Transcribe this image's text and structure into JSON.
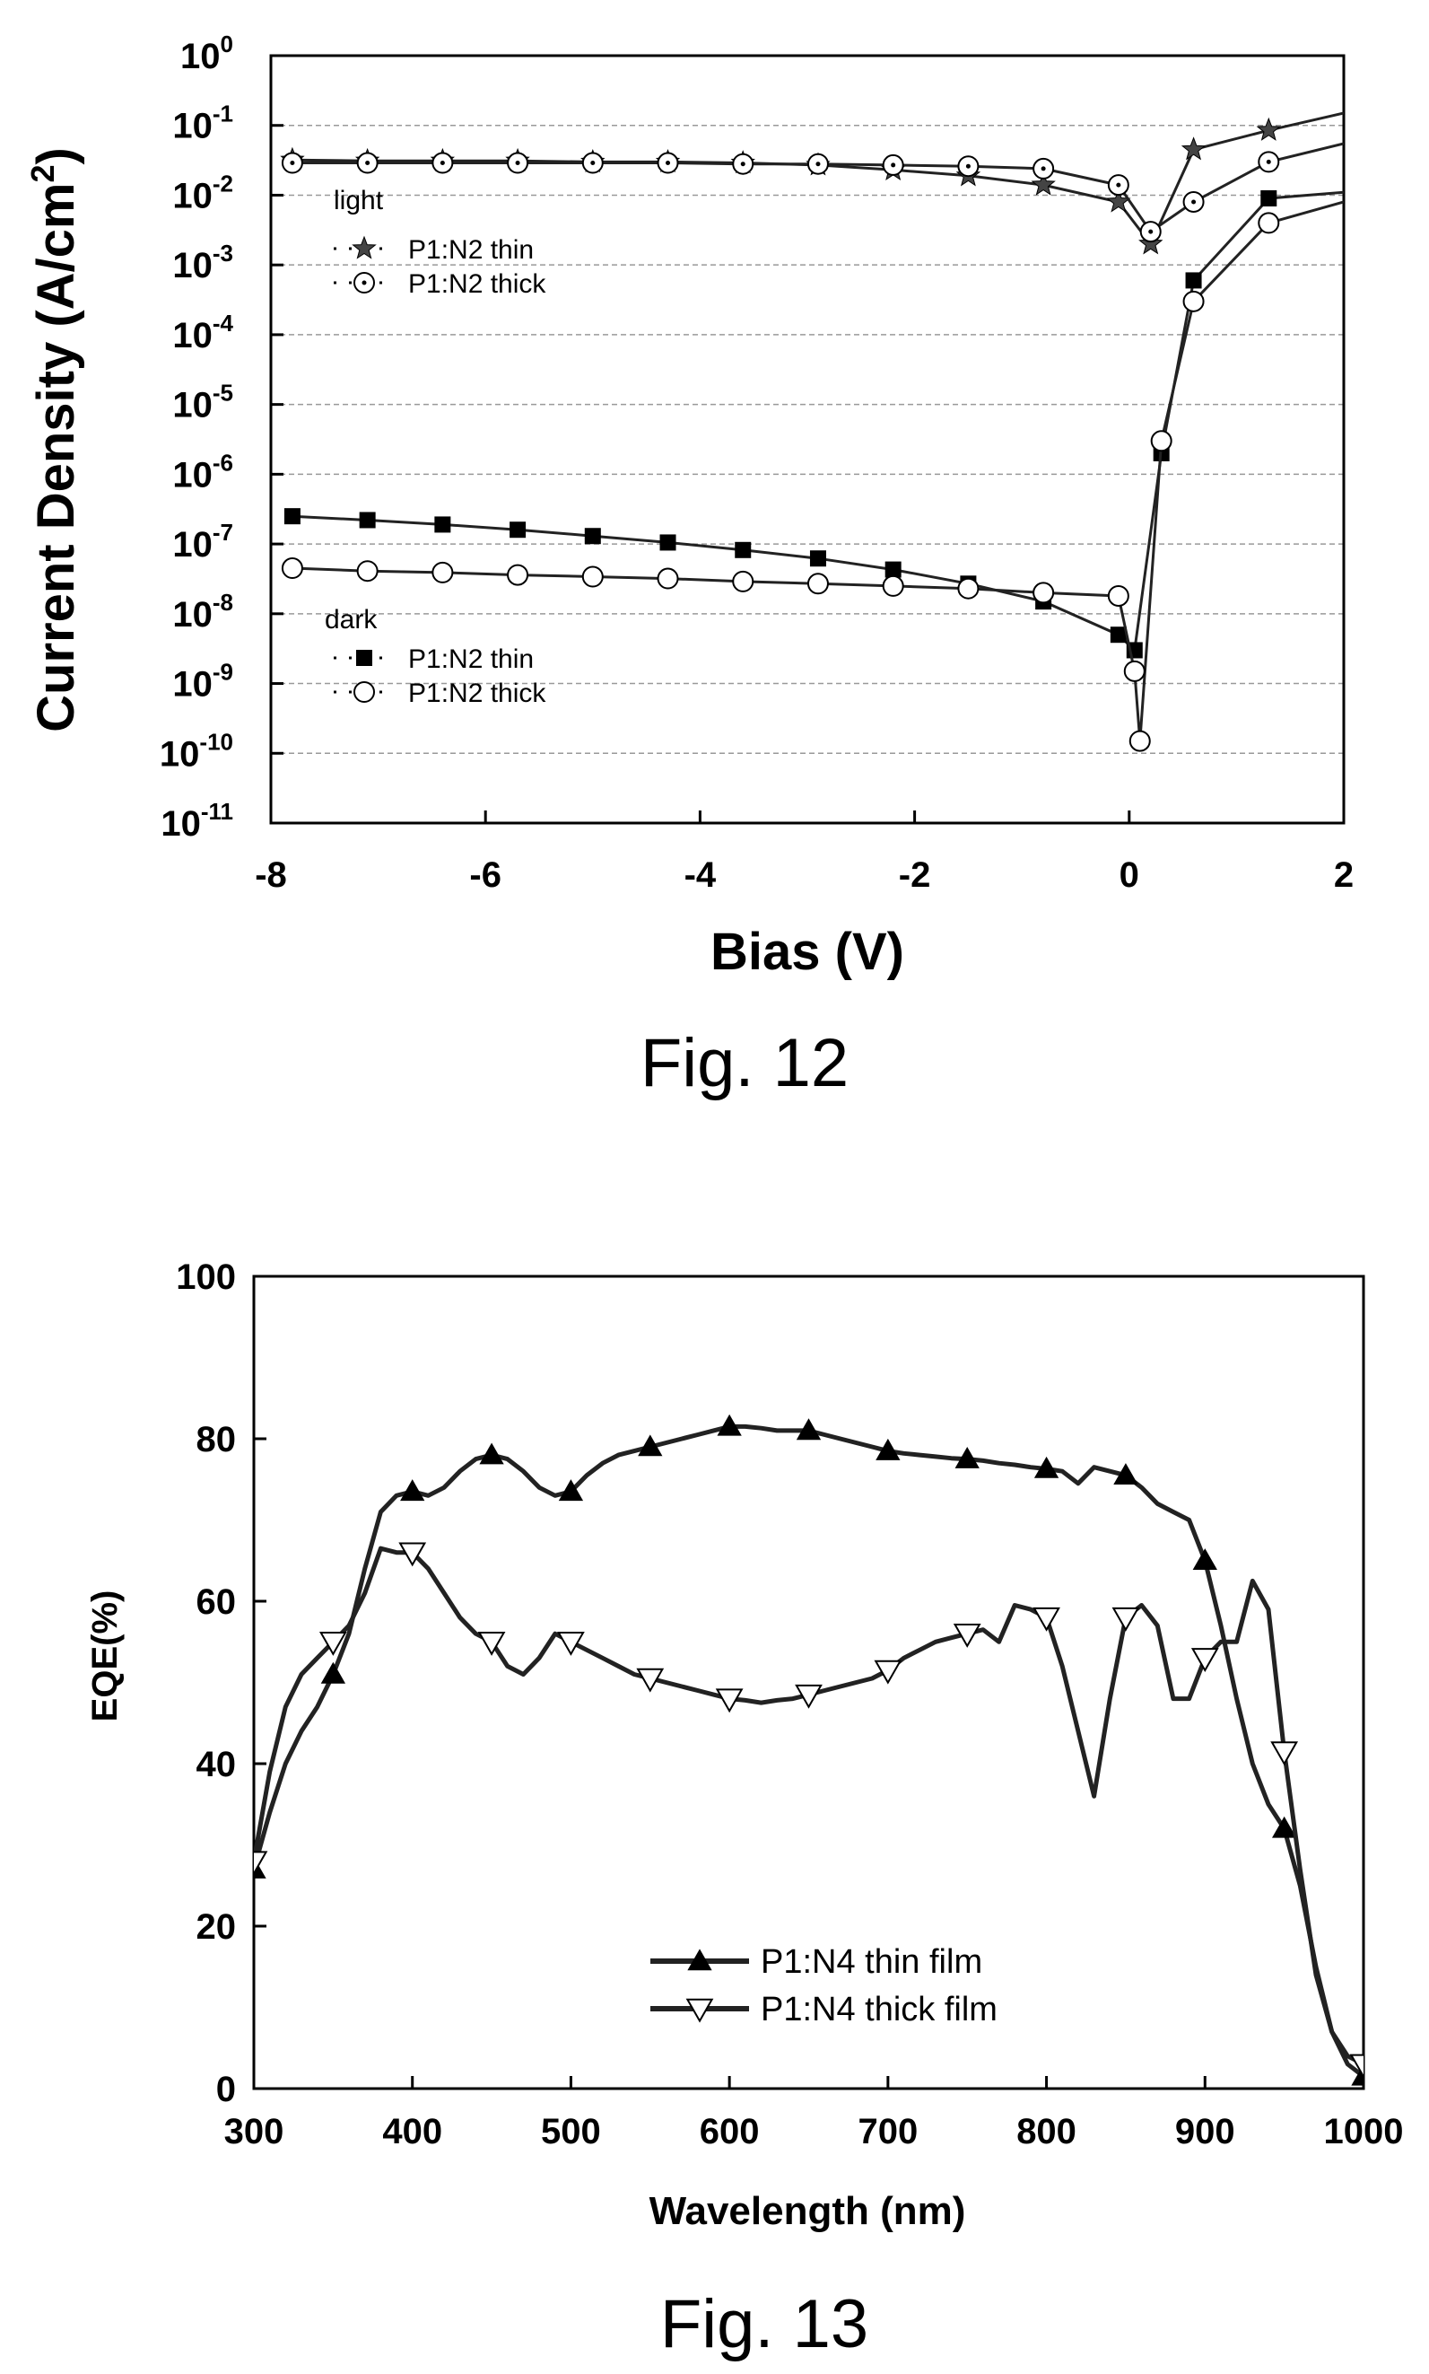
{
  "chart_data": [
    {
      "type": "line",
      "caption": "Fig. 12",
      "xlabel": "Bias (V)",
      "ylabel_main": "Current Density (A/cm",
      "ylabel_sup": "2",
      "ylabel_close": ")",
      "xlim": [
        -8,
        2
      ],
      "ylim_log10": [
        -11,
        0
      ],
      "yscale": "log",
      "grid": "horizontal dashed",
      "x_ticks": [
        "-8",
        "-6",
        "-4",
        "-2",
        "0",
        "2"
      ],
      "y_ticks": [
        {
          "base": "10",
          "exp": "0"
        },
        {
          "base": "10",
          "exp": "-1"
        },
        {
          "base": "10",
          "exp": "-2"
        },
        {
          "base": "10",
          "exp": "-3"
        },
        {
          "base": "10",
          "exp": "-4"
        },
        {
          "base": "10",
          "exp": "-5"
        },
        {
          "base": "10",
          "exp": "-6"
        },
        {
          "base": "10",
          "exp": "-7"
        },
        {
          "base": "10",
          "exp": "-8"
        },
        {
          "base": "10",
          "exp": "-9"
        },
        {
          "base": "10",
          "exp": "-10"
        },
        {
          "base": "10",
          "exp": "-11"
        }
      ],
      "legend_light_title": "light",
      "legend_dark_title": "dark",
      "series": [
        {
          "name": "P1:N2 thin",
          "group": "light",
          "marker": "star",
          "x": [
            -7.8,
            -7.1,
            -6.4,
            -5.7,
            -5.0,
            -4.3,
            -3.6,
            -2.9,
            -2.2,
            -1.5,
            -0.8,
            -0.1,
            0.2,
            0.6,
            1.3,
            2.0
          ],
          "y": [
            0.032,
            0.031,
            0.031,
            0.031,
            0.03,
            0.03,
            0.029,
            0.027,
            0.023,
            0.019,
            0.014,
            0.008,
            0.002,
            0.045,
            0.085,
            0.15
          ]
        },
        {
          "name": "P1:N2 thick",
          "group": "light",
          "marker": "circle-dot",
          "x": [
            -7.8,
            -7.1,
            -6.4,
            -5.7,
            -5.0,
            -4.3,
            -3.6,
            -2.9,
            -2.2,
            -1.5,
            -0.8,
            -0.1,
            0.2,
            0.6,
            1.3,
            2.0
          ],
          "y": [
            0.029,
            0.029,
            0.029,
            0.029,
            0.029,
            0.029,
            0.028,
            0.028,
            0.027,
            0.026,
            0.024,
            0.014,
            0.003,
            0.008,
            0.03,
            0.055
          ]
        },
        {
          "name": "P1:N2 thin",
          "group": "dark",
          "marker": "square",
          "x": [
            -7.8,
            -7.1,
            -6.4,
            -5.7,
            -5.0,
            -4.3,
            -3.6,
            -2.9,
            -2.2,
            -1.5,
            -0.8,
            -0.1,
            0.05,
            0.3,
            0.6,
            1.3,
            2.0
          ],
          "y": [
            2.5e-07,
            2.2e-07,
            1.9e-07,
            1.6e-07,
            1.3e-07,
            1.05e-07,
            8.2e-08,
            6.2e-08,
            4.3e-08,
            2.7e-08,
            1.5e-08,
            5e-09,
            3e-09,
            2e-06,
            0.0006,
            0.009,
            0.011
          ]
        },
        {
          "name": "P1:N2 thick",
          "group": "dark",
          "marker": "circle",
          "x": [
            -7.8,
            -7.1,
            -6.4,
            -5.7,
            -5.0,
            -4.3,
            -3.6,
            -2.9,
            -2.2,
            -1.5,
            -0.8,
            -0.1,
            0.05,
            0.1,
            0.3,
            0.6,
            1.3,
            2.0
          ],
          "y": [
            4.5e-08,
            4.1e-08,
            3.9e-08,
            3.6e-08,
            3.4e-08,
            3.2e-08,
            2.9e-08,
            2.7e-08,
            2.5e-08,
            2.3e-08,
            2e-08,
            1.8e-08,
            1.5e-09,
            1.5e-10,
            3e-06,
            0.0003,
            0.004,
            0.008
          ]
        }
      ]
    },
    {
      "type": "line",
      "caption": "Fig. 13",
      "xlabel": "Wavelength (nm)",
      "ylabel": "EQE(%)",
      "xlim": [
        300,
        1000
      ],
      "ylim": [
        0,
        100
      ],
      "x_ticks": [
        "300",
        "400",
        "500",
        "600",
        "700",
        "800",
        "900",
        "1000"
      ],
      "y_ticks": [
        "0",
        "20",
        "40",
        "60",
        "80",
        "100"
      ],
      "legend": "lower center",
      "series": [
        {
          "name": "P1:N4 thin film",
          "marker": "triangle-up-filled",
          "x": [
            300,
            310,
            320,
            330,
            340,
            350,
            360,
            370,
            380,
            390,
            400,
            410,
            420,
            430,
            440,
            450,
            460,
            470,
            480,
            490,
            500,
            510,
            520,
            530,
            540,
            550,
            560,
            570,
            580,
            590,
            600,
            610,
            620,
            630,
            640,
            650,
            660,
            670,
            680,
            690,
            700,
            710,
            720,
            730,
            740,
            750,
            760,
            770,
            780,
            790,
            800,
            810,
            820,
            830,
            840,
            850,
            860,
            870,
            880,
            890,
            900,
            910,
            920,
            930,
            940,
            950,
            960,
            970,
            980,
            990,
            1000
          ],
          "y": [
            27,
            34,
            40,
            44,
            47,
            51,
            56,
            64,
            71,
            73,
            73.5,
            73,
            74,
            76,
            77.5,
            78,
            77.5,
            76,
            74,
            73,
            73.5,
            75.5,
            77,
            78,
            78.5,
            79,
            79.5,
            80,
            80.5,
            81,
            81.5,
            81.5,
            81.3,
            81,
            81,
            81,
            80.5,
            80,
            79.5,
            79,
            78.5,
            78.2,
            78,
            77.8,
            77.6,
            77.5,
            77.3,
            77,
            76.8,
            76.5,
            76.3,
            76,
            74.5,
            76.5,
            76,
            75.5,
            74,
            72,
            71,
            70,
            65,
            57,
            48,
            40,
            35,
            32,
            25,
            15,
            7,
            3,
            1.5
          ],
          "markers_at": [
            300,
            350,
            400,
            450,
            500,
            550,
            600,
            650,
            700,
            750,
            800,
            850,
            900,
            950,
            1000
          ]
        },
        {
          "name": "P1:N4 thick film",
          "marker": "triangle-down-open",
          "x": [
            300,
            310,
            320,
            330,
            340,
            350,
            360,
            370,
            380,
            390,
            400,
            410,
            420,
            430,
            440,
            450,
            460,
            470,
            480,
            490,
            500,
            510,
            520,
            530,
            540,
            550,
            560,
            570,
            580,
            590,
            600,
            610,
            620,
            630,
            640,
            650,
            660,
            670,
            680,
            690,
            700,
            710,
            720,
            730,
            740,
            750,
            760,
            770,
            780,
            790,
            800,
            810,
            820,
            830,
            840,
            850,
            860,
            870,
            880,
            890,
            900,
            910,
            920,
            930,
            940,
            950,
            960,
            970,
            980,
            990,
            1000
          ],
          "y": [
            28,
            39,
            47,
            51,
            53,
            55,
            57,
            61,
            66.5,
            66,
            66,
            64,
            61,
            58,
            56,
            55,
            52,
            51,
            53,
            56,
            55,
            54,
            53,
            52,
            51,
            50.5,
            50,
            49.5,
            49,
            48.5,
            48,
            47.8,
            47.5,
            47.8,
            48,
            48.5,
            49,
            49.5,
            50,
            50.5,
            51.5,
            53,
            54,
            55,
            55.5,
            56,
            56.5,
            55,
            59.5,
            59,
            58,
            52,
            44,
            36,
            48,
            58,
            59.5,
            57,
            48,
            48,
            53,
            55,
            55,
            62.5,
            59,
            41.5,
            27,
            14,
            7,
            4,
            3
          ],
          "markers_at": [
            300,
            350,
            400,
            450,
            500,
            550,
            600,
            650,
            700,
            750,
            800,
            850,
            900,
            950,
            1000
          ]
        }
      ]
    }
  ]
}
